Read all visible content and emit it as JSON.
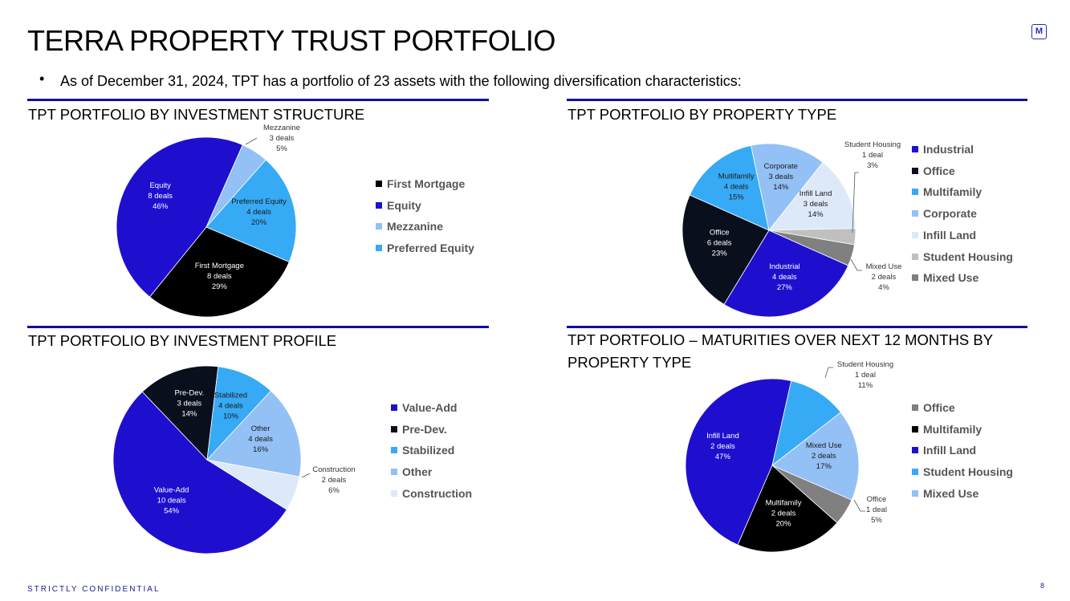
{
  "header": {
    "title": "TERRA PROPERTY TRUST PORTFOLIO",
    "logo_text": "M",
    "bullet_text": "As of December 31, 2024, TPT has a portfolio of 23 assets with the following diversification characteristics:"
  },
  "footer": {
    "confidential": "STRICTLY CONFIDENTIAL",
    "page_number": "8"
  },
  "chart_data": [
    {
      "type": "pie",
      "title": "TPT PORTFOLIO BY INVESTMENT STRUCTURE",
      "slices": [
        {
          "name": "First Mortgage",
          "deals": "8 deals",
          "pct_label": "29%",
          "value": 29.5,
          "color": "#000000"
        },
        {
          "name": "Equity",
          "deals": "8 deals",
          "pct_label": "46%",
          "value": 45.8,
          "color": "#1e0fcf"
        },
        {
          "name": "Mezzanine",
          "deals": "3 deals",
          "pct_label": "5%",
          "value": 4.9,
          "color": "#93c0f5"
        },
        {
          "name": "Preferred Equity",
          "deals": "4 deals",
          "pct_label": "20%",
          "value": 19.8,
          "color": "#37aaf5"
        }
      ],
      "legend": [
        "First Mortgage",
        "Equity",
        "Mezzanine",
        "Preferred Equity"
      ]
    },
    {
      "type": "pie",
      "title": "TPT PORTFOLIO BY PROPERTY TYPE",
      "slices": [
        {
          "name": "Industrial",
          "deals": "4 deals",
          "pct_label": "27%",
          "value": 27.0,
          "color": "#1e0fcf"
        },
        {
          "name": "Office",
          "deals": "6 deals",
          "pct_label": "23%",
          "value": 23.0,
          "color": "#0a0f1e"
        },
        {
          "name": "Multifamily",
          "deals": "4 deals",
          "pct_label": "15%",
          "value": 15.0,
          "color": "#37aaf5"
        },
        {
          "name": "Corporate",
          "deals": "3 deals",
          "pct_label": "14%",
          "value": 14.0,
          "color": "#93c0f5"
        },
        {
          "name": "Infill Land",
          "deals": "3 deals",
          "pct_label": "14%",
          "value": 14.0,
          "color": "#dde9f8"
        },
        {
          "name": "Student Housing",
          "deals": "1 deal",
          "pct_label": "3%",
          "value": 3.0,
          "color": "#c0c0c0"
        },
        {
          "name": "Mixed Use",
          "deals": "2 deals",
          "pct_label": "4%",
          "value": 4.0,
          "color": "#808080"
        }
      ],
      "legend": [
        "Industrial",
        "Office",
        "Multifamily",
        "Corporate",
        "Infill Land",
        "Student Housing",
        "Mixed Use"
      ]
    },
    {
      "type": "pie",
      "title": "TPT PORTFOLIO BY INVESTMENT PROFILE",
      "slices": [
        {
          "name": "Value-Add",
          "deals": "10 deals",
          "pct_label": "54%",
          "value": 54.0,
          "color": "#1e0fcf"
        },
        {
          "name": "Pre-Dev.",
          "deals": "3 deals",
          "pct_label": "14%",
          "value": 14.0,
          "color": "#0a0f1e"
        },
        {
          "name": "Stabilized",
          "deals": "4 deals",
          "pct_label": "10%",
          "value": 10.0,
          "color": "#37aaf5"
        },
        {
          "name": "Other",
          "deals": "4 deals",
          "pct_label": "16%",
          "value": 16.0,
          "color": "#93c0f5"
        },
        {
          "name": "Construction",
          "deals": "2 deals",
          "pct_label": "6%",
          "value": 6.0,
          "color": "#dde9f8"
        }
      ],
      "legend": [
        "Value-Add",
        "Pre-Dev.",
        "Stabilized",
        "Other",
        "Construction"
      ]
    },
    {
      "type": "pie",
      "title": "TPT PORTFOLIO – MATURITIES OVER NEXT 12 MONTHS BY PROPERTY TYPE",
      "slices": [
        {
          "name": "Office",
          "deals": "1 deal",
          "pct_label": "5%",
          "value": 5.0,
          "color": "#808080"
        },
        {
          "name": "Multifamily",
          "deals": "2 deals",
          "pct_label": "20%",
          "value": 20.0,
          "color": "#000000"
        },
        {
          "name": "Infill Land",
          "deals": "2 deals",
          "pct_label": "47%",
          "value": 47.0,
          "color": "#1e0fcf"
        },
        {
          "name": "Student Housing",
          "deals": "1 deal",
          "pct_label": "11%",
          "value": 11.0,
          "color": "#37aaf5"
        },
        {
          "name": "Mixed Use",
          "deals": "2 deals",
          "pct_label": "17%",
          "value": 17.0,
          "color": "#93c0f5"
        }
      ],
      "legend": [
        "Office",
        "Multifamily",
        "Infill Land",
        "Student Housing",
        "Mixed Use"
      ]
    }
  ]
}
